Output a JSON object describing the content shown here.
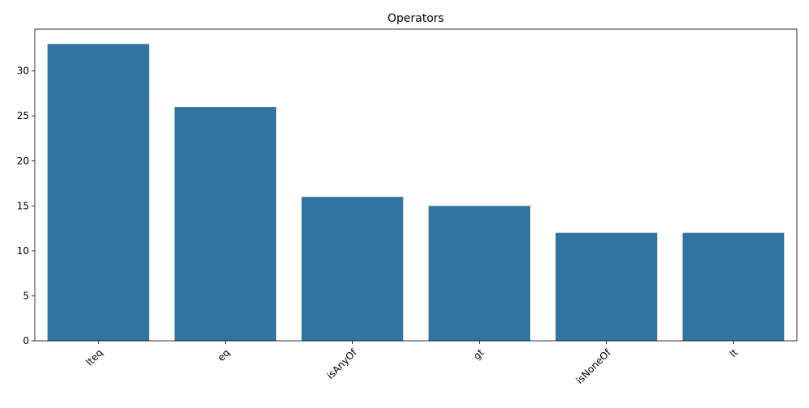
{
  "chart_data": {
    "type": "bar",
    "title": "Operators",
    "xlabel": "",
    "ylabel": "",
    "categories": [
      "lteq",
      "eq",
      "isAnyOf",
      "gt",
      "isNoneOf",
      "lt"
    ],
    "values": [
      33,
      26,
      16,
      15,
      12,
      12
    ],
    "ylim": [
      0,
      34.65
    ],
    "yticks": [
      0,
      5,
      10,
      15,
      20,
      25,
      30
    ],
    "grid": false,
    "legend": "none",
    "bar_color": "#3274a1",
    "x_tick_rotation_deg": 45
  }
}
